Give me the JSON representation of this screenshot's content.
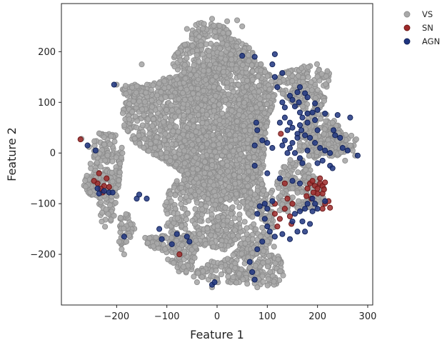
{
  "chart_data": {
    "type": "scatter",
    "xlabel": "Feature 1",
    "ylabel": "Feature 2",
    "xlim": [
      -310,
      310
    ],
    "ylim": [
      -300,
      295
    ],
    "xticks": [
      -200,
      -100,
      0,
      100,
      200,
      300
    ],
    "yticks": [
      -200,
      -100,
      0,
      100,
      200
    ],
    "xtick_labels": [
      "−200",
      "−100",
      "0",
      "100",
      "200",
      "300"
    ],
    "ytick_labels": [
      "−200",
      "−100",
      "0",
      "100",
      "200"
    ],
    "grid": false,
    "legend_position": "outside-top-right",
    "series": [
      {
        "name": "VS",
        "color": "#a9a9a9",
        "edge": "#8e8e8e",
        "regions": [
          {
            "cx": -20,
            "cy": 60,
            "rx": 170,
            "ry": 150,
            "n": 2200
          },
          {
            "cx": 10,
            "cy": -90,
            "rx": 120,
            "ry": 140,
            "n": 800
          },
          {
            "cx": -10,
            "cy": 200,
            "rx": 90,
            "ry": 60,
            "n": 350
          },
          {
            "cx": 175,
            "cy": 130,
            "rx": 60,
            "ry": 55,
            "n": 180
          },
          {
            "cx": 210,
            "cy": 30,
            "rx": 60,
            "ry": 50,
            "n": 180
          },
          {
            "cx": 160,
            "cy": -70,
            "rx": 60,
            "ry": 60,
            "n": 200
          },
          {
            "cx": 240,
            "cy": 20,
            "rx": 40,
            "ry": 30,
            "n": 90
          },
          {
            "cx": -220,
            "cy": -40,
            "rx": 35,
            "ry": 110,
            "n": 200
          },
          {
            "cx": -170,
            "cy": 120,
            "rx": 20,
            "ry": 20,
            "n": 30
          },
          {
            "cx": -245,
            "cy": -60,
            "rx": 30,
            "ry": 25,
            "n": 50
          },
          {
            "cx": 80,
            "cy": -220,
            "rx": 70,
            "ry": 50,
            "n": 170
          },
          {
            "cx": -70,
            "cy": -195,
            "rx": 40,
            "ry": 45,
            "n": 90
          },
          {
            "cx": 10,
            "cy": -235,
            "rx": 60,
            "ry": 30,
            "n": 90
          },
          {
            "cx": -180,
            "cy": -150,
            "rx": 20,
            "ry": 40,
            "n": 40
          },
          {
            "cx": -100,
            "cy": -175,
            "rx": 60,
            "ry": 15,
            "n": 60
          }
        ],
        "points": [
          [
            -270,
            28
          ],
          [
            -255,
            12
          ],
          [
            -240,
            5
          ],
          [
            -200,
            135
          ],
          [
            -150,
            175
          ],
          [
            -10,
            265
          ],
          [
            20,
            260
          ],
          [
            40,
            262
          ],
          [
            50,
            250
          ],
          [
            -60,
            245
          ],
          [
            265,
            15
          ],
          [
            270,
            5
          ],
          [
            275,
            -5
          ],
          [
            255,
            -15
          ],
          [
            230,
            60
          ],
          [
            -195,
            -175
          ],
          [
            -190,
            -190
          ],
          [
            -185,
            -200
          ],
          [
            -10,
            -265
          ],
          [
            0,
            -250
          ],
          [
            80,
            -265
          ],
          [
            60,
            -258
          ],
          [
            -40,
            -255
          ],
          [
            -30,
            -245
          ]
        ]
      },
      {
        "name": "SN",
        "color": "#9e2a2a",
        "edge": "#6a1414",
        "points": [
          [
            -272,
            27
          ],
          [
            -235,
            -40
          ],
          [
            -238,
            -60
          ],
          [
            -225,
            -65
          ],
          [
            -215,
            -67
          ],
          [
            -220,
            -50
          ],
          [
            -232,
            -70
          ],
          [
            -245,
            -55
          ],
          [
            -228,
            -78
          ],
          [
            -75,
            -200
          ],
          [
            115,
            -100
          ],
          [
            115,
            -120
          ],
          [
            125,
            -130
          ],
          [
            120,
            -145
          ],
          [
            135,
            -110
          ],
          [
            145,
            -125
          ],
          [
            148,
            -140
          ],
          [
            150,
            -100
          ],
          [
            180,
            -70
          ],
          [
            185,
            -60
          ],
          [
            190,
            -55
          ],
          [
            195,
            -65
          ],
          [
            200,
            -70
          ],
          [
            205,
            -60
          ],
          [
            210,
            -65
          ],
          [
            210,
            -80
          ],
          [
            200,
            -80
          ],
          [
            192,
            -78
          ],
          [
            188,
            -90
          ],
          [
            213,
            -72
          ],
          [
            215,
            -58
          ],
          [
            178,
            -85
          ],
          [
            205,
            -50
          ],
          [
            215,
            -100
          ],
          [
            222,
            -95
          ],
          [
            210,
            -110
          ],
          [
            225,
            -108
          ],
          [
            135,
            -60
          ],
          [
            140,
            -90
          ],
          [
            127,
            38
          ]
        ]
      },
      {
        "name": "AGN",
        "color": "#1f3580",
        "edge": "#0f1f55",
        "points": [
          [
            -205,
            135
          ],
          [
            -258,
            15
          ],
          [
            -242,
            5
          ],
          [
            -238,
            -70
          ],
          [
            -235,
            -80
          ],
          [
            -215,
            -78
          ],
          [
            -208,
            -78
          ],
          [
            -225,
            -75
          ],
          [
            -185,
            -165
          ],
          [
            -160,
            -90
          ],
          [
            -155,
            -82
          ],
          [
            -140,
            -90
          ],
          [
            -115,
            -150
          ],
          [
            -110,
            -170
          ],
          [
            -90,
            -180
          ],
          [
            -60,
            -165
          ],
          [
            -55,
            -175
          ],
          [
            -10,
            -260
          ],
          [
            -5,
            -255
          ],
          [
            75,
            -250
          ],
          [
            70,
            -235
          ],
          [
            65,
            -215
          ],
          [
            80,
            -190
          ],
          [
            90,
            -175
          ],
          [
            -80,
            -160
          ],
          [
            50,
            192
          ],
          [
            75,
            190
          ],
          [
            115,
            195
          ],
          [
            110,
            175
          ],
          [
            130,
            158
          ],
          [
            115,
            150
          ],
          [
            120,
            130
          ],
          [
            165,
            130
          ],
          [
            160,
            120
          ],
          [
            145,
            113
          ],
          [
            150,
            105
          ],
          [
            155,
            92
          ],
          [
            175,
            118
          ],
          [
            180,
            110
          ],
          [
            195,
            98
          ],
          [
            190,
            80
          ],
          [
            200,
            85
          ],
          [
            215,
            78
          ],
          [
            195,
            65
          ],
          [
            180,
            60
          ],
          [
            170,
            70
          ],
          [
            130,
            100
          ],
          [
            135,
            90
          ],
          [
            145,
            60
          ],
          [
            150,
            50
          ],
          [
            140,
            45
          ],
          [
            165,
            55
          ],
          [
            168,
            45
          ],
          [
            160,
            38
          ],
          [
            175,
            35
          ],
          [
            185,
            30
          ],
          [
            195,
            20
          ],
          [
            205,
            10
          ],
          [
            215,
            5
          ],
          [
            225,
            0
          ],
          [
            210,
            -15
          ],
          [
            200,
            -20
          ],
          [
            225,
            -25
          ],
          [
            230,
            -30
          ],
          [
            160,
            30
          ],
          [
            150,
            20
          ],
          [
            145,
            10
          ],
          [
            140,
            0
          ],
          [
            155,
            0
          ],
          [
            165,
            -10
          ],
          [
            170,
            -20
          ],
          [
            180,
            5
          ],
          [
            135,
            25
          ],
          [
            130,
            15
          ],
          [
            110,
            10
          ],
          [
            100,
            20
          ],
          [
            90,
            25
          ],
          [
            80,
            45
          ],
          [
            78,
            60
          ],
          [
            75,
            15
          ],
          [
            75,
            -25
          ],
          [
            100,
            -40
          ],
          [
            125,
            -50
          ],
          [
            150,
            -55
          ],
          [
            165,
            -60
          ],
          [
            190,
            -90
          ],
          [
            195,
            -100
          ],
          [
            200,
            -110
          ],
          [
            215,
            -95
          ],
          [
            175,
            -110
          ],
          [
            165,
            -115
          ],
          [
            155,
            -120
          ],
          [
            150,
            -135
          ],
          [
            170,
            -135
          ],
          [
            185,
            -140
          ],
          [
            175,
            -155
          ],
          [
            160,
            -155
          ],
          [
            145,
            -170
          ],
          [
            130,
            -160
          ],
          [
            115,
            -165
          ],
          [
            105,
            -155
          ],
          [
            100,
            -145
          ],
          [
            95,
            -130
          ],
          [
            100,
            -110
          ],
          [
            110,
            -95
          ],
          [
            95,
            -100
          ],
          [
            85,
            -105
          ],
          [
            80,
            -120
          ],
          [
            180,
            -100
          ],
          [
            190,
            -115
          ],
          [
            250,
            10
          ],
          [
            260,
            5
          ],
          [
            280,
            -5
          ],
          [
            235,
            35
          ],
          [
            245,
            30
          ],
          [
            265,
            70
          ],
          [
            240,
            75
          ],
          [
            232,
            45
          ],
          [
            200,
            45
          ],
          [
            180,
            78
          ],
          [
            163,
            100
          ],
          [
            135,
            70
          ],
          [
            125,
            60
          ],
          [
            165,
            80
          ]
        ]
      }
    ]
  }
}
